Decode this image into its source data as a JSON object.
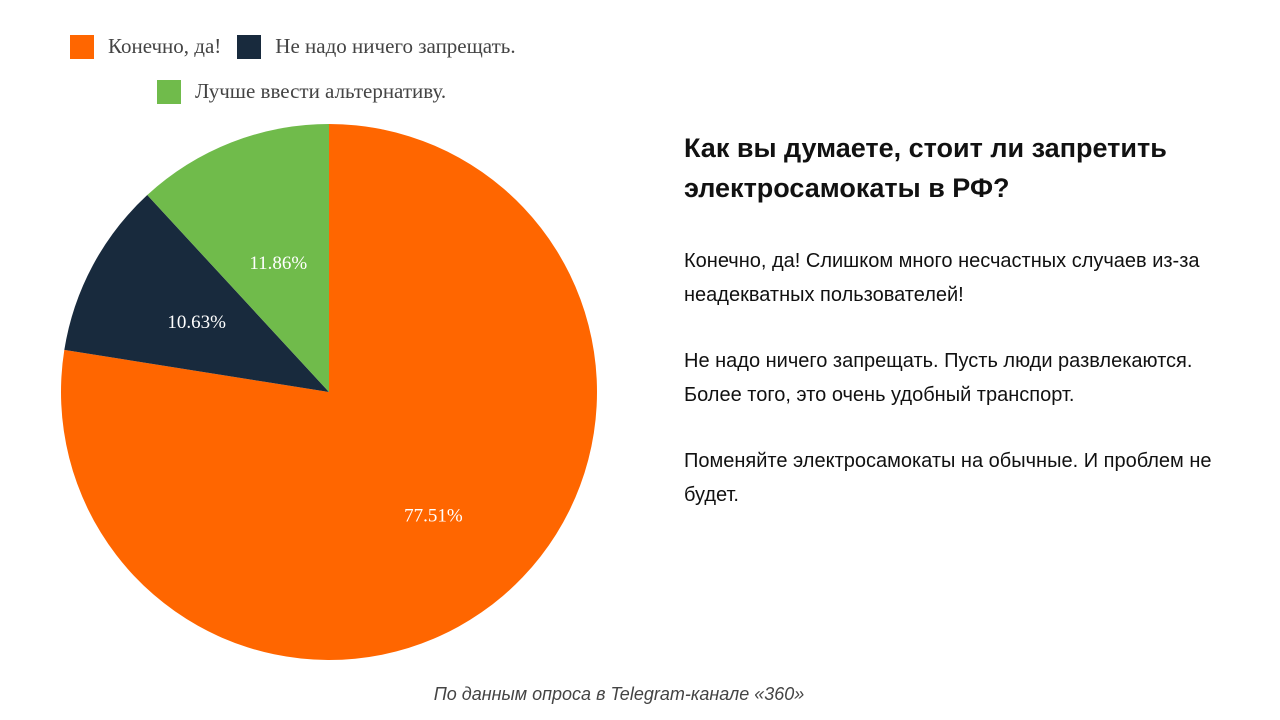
{
  "chart_data": {
    "type": "pie",
    "labels": [
      "Конечно, да!",
      "Не надо ничего запрещать.",
      "Лучше ввести альтернативу."
    ],
    "values": [
      77.51,
      10.63,
      11.86
    ],
    "value_labels": [
      "77.51%",
      "10.63%",
      "11.86%"
    ],
    "colors": [
      "#ff6600",
      "#182a3d",
      "#70bb4b"
    ],
    "legend_position": "top"
  },
  "panel": {
    "question": "Как вы думаете, стоит ли запретить электросамокаты в РФ?",
    "answers": [
      "Конечно, да! Слишком много несчастных случаев из-за неадекватных пользователей!",
      "Не надо ничего запрещать. Пусть люди развлекаются. Более того, это очень удобный транспорт.",
      "Поменяйте электросамокаты на обычные. И проблем не будет."
    ]
  },
  "source": "По данным опроса в Telegram-канале «360»"
}
